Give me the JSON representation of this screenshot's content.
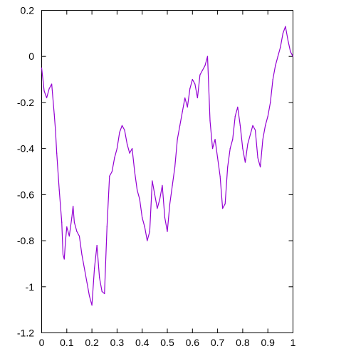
{
  "chart_data": {
    "type": "line",
    "title": "",
    "xlabel": "",
    "ylabel": "",
    "xlim": [
      0,
      1
    ],
    "ylim": [
      -1.2,
      0.2
    ],
    "grid": false,
    "legend": "none",
    "x_ticks": [
      "0",
      "0.1",
      "0.2",
      "0.3",
      "0.4",
      "0.5",
      "0.6",
      "0.7",
      "0.8",
      "0.9",
      "1"
    ],
    "y_ticks": [
      "0.2",
      "0",
      "-0.2",
      "-0.4",
      "-0.6",
      "-0.8",
      "-1",
      "-1.2"
    ],
    "series": [
      {
        "color": "#9400d3",
        "x": [
          0.0,
          0.01,
          0.02,
          0.03,
          0.04,
          0.05,
          0.055,
          0.06,
          0.07,
          0.08,
          0.085,
          0.09,
          0.095,
          0.1,
          0.11,
          0.12,
          0.125,
          0.13,
          0.14,
          0.15,
          0.16,
          0.17,
          0.18,
          0.19,
          0.2,
          0.21,
          0.22,
          0.23,
          0.24,
          0.25,
          0.26,
          0.27,
          0.28,
          0.29,
          0.3,
          0.31,
          0.32,
          0.33,
          0.34,
          0.35,
          0.36,
          0.37,
          0.38,
          0.39,
          0.4,
          0.41,
          0.42,
          0.43,
          0.44,
          0.45,
          0.46,
          0.47,
          0.48,
          0.49,
          0.5,
          0.51,
          0.52,
          0.53,
          0.54,
          0.55,
          0.56,
          0.57,
          0.58,
          0.59,
          0.6,
          0.61,
          0.62,
          0.63,
          0.64,
          0.65,
          0.66,
          0.67,
          0.68,
          0.69,
          0.7,
          0.71,
          0.72,
          0.73,
          0.74,
          0.75,
          0.76,
          0.77,
          0.78,
          0.79,
          0.8,
          0.81,
          0.82,
          0.83,
          0.84,
          0.85,
          0.86,
          0.87,
          0.88,
          0.89,
          0.9,
          0.91,
          0.92,
          0.93,
          0.94,
          0.95,
          0.96,
          0.97,
          0.98,
          0.99,
          1.0
        ],
        "values": [
          -0.05,
          -0.15,
          -0.18,
          -0.14,
          -0.12,
          -0.25,
          -0.32,
          -0.42,
          -0.58,
          -0.72,
          -0.86,
          -0.88,
          -0.8,
          -0.74,
          -0.78,
          -0.7,
          -0.65,
          -0.72,
          -0.76,
          -0.78,
          -0.86,
          -0.92,
          -0.98,
          -1.04,
          -1.08,
          -0.92,
          -0.82,
          -0.96,
          -1.02,
          -1.03,
          -0.74,
          -0.52,
          -0.5,
          -0.44,
          -0.4,
          -0.33,
          -0.3,
          -0.32,
          -0.38,
          -0.42,
          -0.4,
          -0.5,
          -0.58,
          -0.62,
          -0.7,
          -0.74,
          -0.8,
          -0.76,
          -0.54,
          -0.6,
          -0.66,
          -0.62,
          -0.56,
          -0.7,
          -0.76,
          -0.64,
          -0.56,
          -0.48,
          -0.36,
          -0.3,
          -0.24,
          -0.18,
          -0.22,
          -0.14,
          -0.1,
          -0.12,
          -0.18,
          -0.08,
          -0.06,
          -0.04,
          0.0,
          -0.28,
          -0.4,
          -0.36,
          -0.44,
          -0.52,
          -0.66,
          -0.64,
          -0.48,
          -0.4,
          -0.36,
          -0.26,
          -0.22,
          -0.3,
          -0.4,
          -0.46,
          -0.38,
          -0.34,
          -0.3,
          -0.32,
          -0.44,
          -0.48,
          -0.36,
          -0.3,
          -0.26,
          -0.2,
          -0.1,
          -0.04,
          0.0,
          0.04,
          0.1,
          0.13,
          0.07,
          0.02,
          0.0
        ]
      }
    ]
  }
}
